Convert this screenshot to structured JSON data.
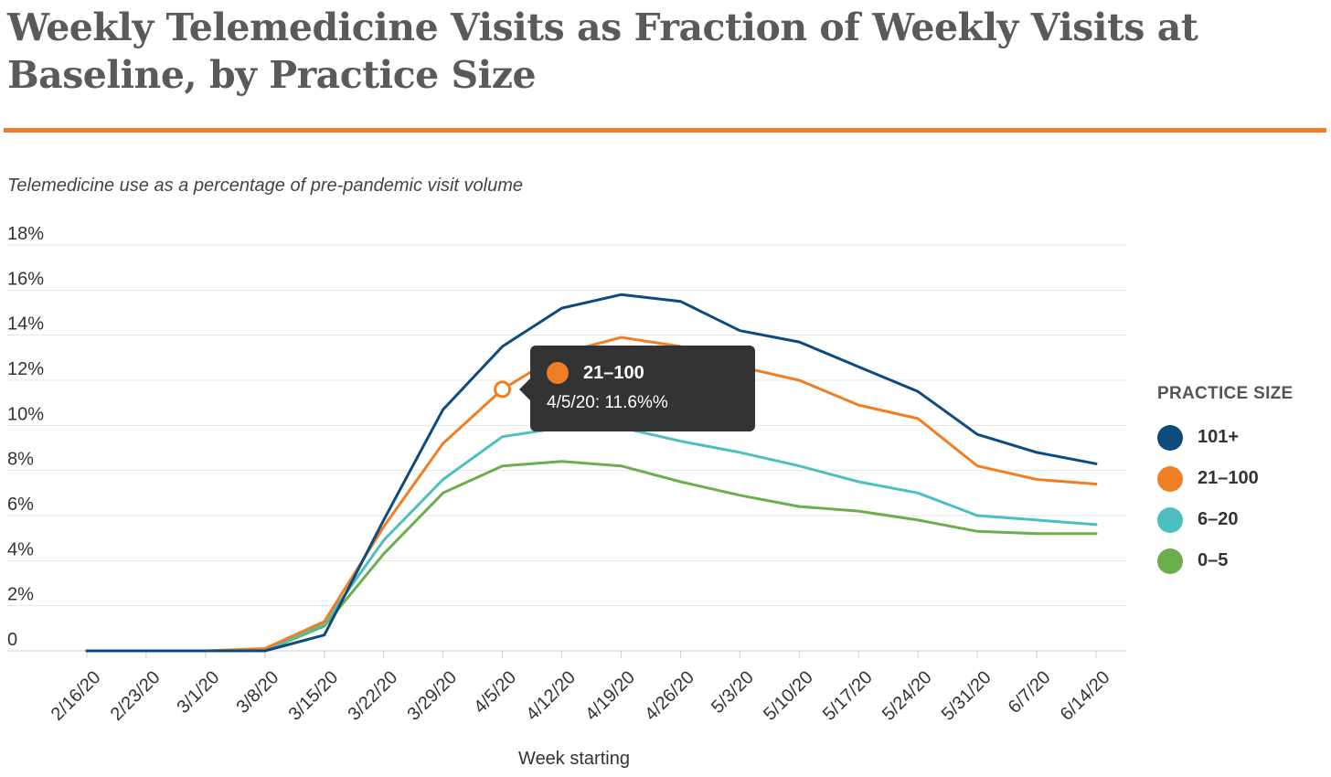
{
  "title": "Weekly Telemedicine Visits as Fraction of Weekly Visits at Baseline, by Practice Size",
  "subtitle": "Telemedicine use as a percentage of pre-pandemic visit volume",
  "colors": {
    "accent_rule": "#f07f23",
    "101+": "#0d4a7f",
    "21–100": "#f07f23",
    "6–20": "#4dbfbf",
    "0–5": "#6aaf4c"
  },
  "legend": {
    "title": "PRACTICE SIZE",
    "items": [
      {
        "label": "101+",
        "color": "#0d4a7f"
      },
      {
        "label": "21–100",
        "color": "#f07f23"
      },
      {
        "label": "6–20",
        "color": "#4dbfbf"
      },
      {
        "label": "0–5",
        "color": "#6aaf4c"
      }
    ]
  },
  "tooltip": {
    "series": "21–100",
    "color": "#f07f23",
    "text": "4/5/20: 11.6%%",
    "x": "4/5/20",
    "y": 11.6
  },
  "chart_data": {
    "type": "line",
    "title": "Weekly Telemedicine Visits as Fraction of Weekly Visits at Baseline, by Practice Size",
    "subtitle": "Telemedicine use as a percentage of pre-pandemic visit volume",
    "xlabel": "Week starting",
    "ylabel": "",
    "ylim": [
      0,
      18
    ],
    "y_ticks": [
      0,
      2,
      4,
      6,
      8,
      10,
      12,
      14,
      16,
      18
    ],
    "y_tick_labels": [
      "0",
      "2%",
      "4%",
      "6%",
      "8%",
      "10%",
      "12%",
      "14%",
      "16%",
      "18%"
    ],
    "grid": "horizontal",
    "legend_position": "right",
    "categories": [
      "2/16/20",
      "2/23/20",
      "3/1/20",
      "3/8/20",
      "3/15/20",
      "3/22/20",
      "3/29/20",
      "4/5/20",
      "4/12/20",
      "4/19/20",
      "4/26/20",
      "5/3/20",
      "5/10/20",
      "5/17/20",
      "5/24/20",
      "5/31/20",
      "6/7/20",
      "6/14/20"
    ],
    "series": [
      {
        "name": "101+",
        "color": "#0d4a7f",
        "values": [
          0,
          0,
          0,
          0,
          0.7,
          5.8,
          10.7,
          13.5,
          15.2,
          15.8,
          15.5,
          14.2,
          13.7,
          12.6,
          11.5,
          9.6,
          8.8,
          8.3
        ]
      },
      {
        "name": "21–100",
        "color": "#f07f23",
        "values": [
          0,
          0,
          0,
          0.1,
          1.3,
          5.5,
          9.2,
          11.6,
          13.2,
          13.9,
          13.5,
          12.6,
          12.0,
          10.9,
          10.3,
          8.2,
          7.6,
          7.4
        ]
      },
      {
        "name": "6–20",
        "color": "#4dbfbf",
        "values": [
          0,
          0,
          0,
          0,
          1.2,
          4.9,
          7.6,
          9.5,
          9.9,
          9.9,
          9.3,
          8.8,
          8.2,
          7.5,
          7.0,
          6.0,
          5.8,
          5.6
        ]
      },
      {
        "name": "0–5",
        "color": "#6aaf4c",
        "values": [
          0,
          0,
          0,
          0,
          1.1,
          4.3,
          7.0,
          8.2,
          8.4,
          8.2,
          7.5,
          6.9,
          6.4,
          6.2,
          5.8,
          5.3,
          5.2,
          5.2
        ]
      }
    ]
  }
}
